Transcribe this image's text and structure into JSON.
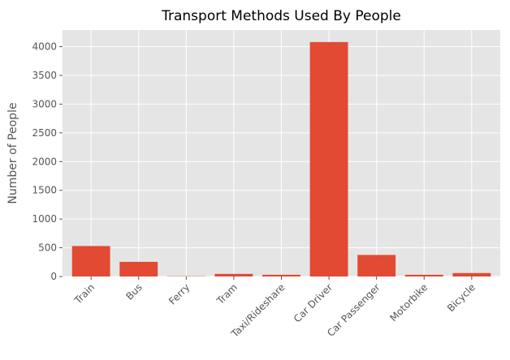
{
  "chart_data": {
    "type": "bar",
    "title": "Transport Methods Used By People",
    "xlabel": "",
    "ylabel": "Number of People",
    "categories": [
      "Train",
      "Bus",
      "Ferry",
      "Tram",
      "Taxi/Rideshare",
      "Car Driver",
      "Car Passenger",
      "Motorbike",
      "Bicycle"
    ],
    "values": [
      530,
      255,
      5,
      45,
      30,
      4080,
      375,
      30,
      60
    ],
    "yticks": [
      0,
      500,
      1000,
      1500,
      2000,
      2500,
      3000,
      3500,
      4000
    ],
    "ylim": [
      0,
      4290
    ],
    "grid": true,
    "legend": "none",
    "colors": {
      "bar": "#E24A33",
      "plot_background": "#E5E5E5",
      "grid": "#FFFFFF",
      "tick_text": "#555555",
      "title_text": "#000000"
    }
  }
}
